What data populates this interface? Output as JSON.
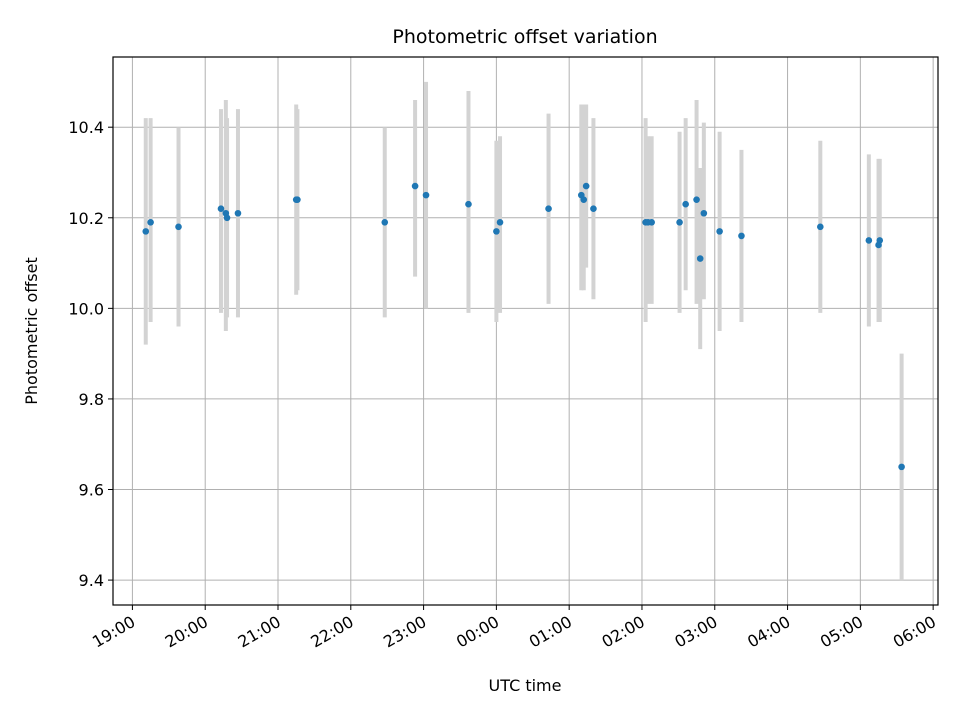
{
  "chart_data": {
    "type": "scatter",
    "title": "Photometric offset variation",
    "xlabel": "UTC time",
    "ylabel": "Photometric offset",
    "x_ticks": [
      "19:00",
      "20:00",
      "21:00",
      "22:00",
      "23:00",
      "00:00",
      "01:00",
      "02:00",
      "03:00",
      "04:00",
      "05:00",
      "06:00"
    ],
    "y_ticks": [
      "9.4",
      "9.6",
      "9.8",
      "10.0",
      "10.2",
      "10.4"
    ],
    "xlim": [
      "18:44",
      "06:04"
    ],
    "ylim": [
      9.345,
      10.555
    ],
    "grid": true,
    "colors": {
      "point": "#1f77b4",
      "errorbar": "#d3d3d3",
      "grid": "#b0b0b0"
    },
    "points": [
      {
        "t": "19:11",
        "y": 10.17,
        "lo": 9.92,
        "hi": 10.42
      },
      {
        "t": "19:15",
        "y": 10.19,
        "lo": 9.97,
        "hi": 10.42
      },
      {
        "t": "19:38",
        "y": 10.18,
        "lo": 9.96,
        "hi": 10.4
      },
      {
        "t": "20:13",
        "y": 10.22,
        "lo": 9.99,
        "hi": 10.44
      },
      {
        "t": "20:17",
        "y": 10.21,
        "lo": 9.95,
        "hi": 10.46
      },
      {
        "t": "20:18",
        "y": 10.2,
        "lo": 9.98,
        "hi": 10.42
      },
      {
        "t": "20:27",
        "y": 10.21,
        "lo": 9.98,
        "hi": 10.44
      },
      {
        "t": "21:15",
        "y": 10.24,
        "lo": 10.03,
        "hi": 10.45
      },
      {
        "t": "21:16",
        "y": 10.24,
        "lo": 10.04,
        "hi": 10.44
      },
      {
        "t": "22:28",
        "y": 10.19,
        "lo": 9.98,
        "hi": 10.4
      },
      {
        "t": "22:53",
        "y": 10.27,
        "lo": 10.07,
        "hi": 10.46
      },
      {
        "t": "23:02",
        "y": 10.25,
        "lo": 10.0,
        "hi": 10.5
      },
      {
        "t": "23:37",
        "y": 10.23,
        "lo": 9.99,
        "hi": 10.48
      },
      {
        "t": "00:00",
        "y": 10.17,
        "lo": 9.97,
        "hi": 10.37
      },
      {
        "t": "00:03",
        "y": 10.19,
        "lo": 9.99,
        "hi": 10.38
      },
      {
        "t": "00:43",
        "y": 10.22,
        "lo": 10.01,
        "hi": 10.43
      },
      {
        "t": "01:10",
        "y": 10.25,
        "lo": 10.04,
        "hi": 10.45
      },
      {
        "t": "01:12",
        "y": 10.24,
        "lo": 10.04,
        "hi": 10.45
      },
      {
        "t": "01:14",
        "y": 10.27,
        "lo": 10.09,
        "hi": 10.45
      },
      {
        "t": "01:20",
        "y": 10.22,
        "lo": 10.02,
        "hi": 10.42
      },
      {
        "t": "02:03",
        "y": 10.19,
        "lo": 9.97,
        "hi": 10.42
      },
      {
        "t": "02:05",
        "y": 10.19,
        "lo": 10.01,
        "hi": 10.38
      },
      {
        "t": "02:08",
        "y": 10.19,
        "lo": 10.01,
        "hi": 10.38
      },
      {
        "t": "02:31",
        "y": 10.19,
        "lo": 9.99,
        "hi": 10.39
      },
      {
        "t": "02:36",
        "y": 10.23,
        "lo": 10.04,
        "hi": 10.42
      },
      {
        "t": "02:45",
        "y": 10.24,
        "lo": 10.01,
        "hi": 10.46
      },
      {
        "t": "02:48",
        "y": 10.11,
        "lo": 9.91,
        "hi": 10.31
      },
      {
        "t": "02:51",
        "y": 10.21,
        "lo": 10.02,
        "hi": 10.41
      },
      {
        "t": "03:04",
        "y": 10.17,
        "lo": 9.95,
        "hi": 10.39
      },
      {
        "t": "03:22",
        "y": 10.16,
        "lo": 9.97,
        "hi": 10.35
      },
      {
        "t": "04:27",
        "y": 10.18,
        "lo": 9.99,
        "hi": 10.37
      },
      {
        "t": "05:07",
        "y": 10.15,
        "lo": 9.96,
        "hi": 10.34
      },
      {
        "t": "05:15",
        "y": 10.14,
        "lo": 9.97,
        "hi": 10.33
      },
      {
        "t": "05:16",
        "y": 10.15,
        "lo": 9.97,
        "hi": 10.33
      },
      {
        "t": "05:34",
        "y": 9.65,
        "lo": 9.4,
        "hi": 9.9
      }
    ]
  }
}
